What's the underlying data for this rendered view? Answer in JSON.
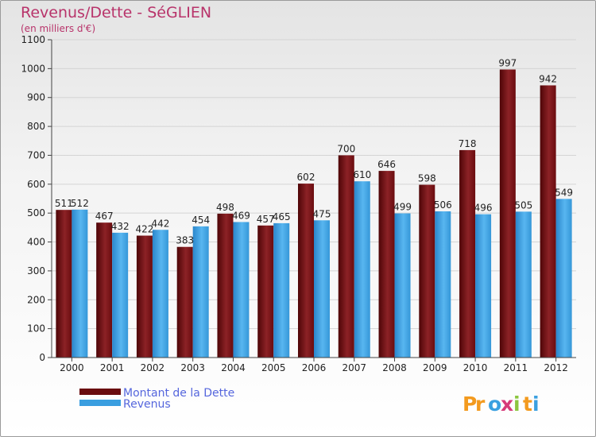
{
  "title": "Revenus/Dette - SéGLIEN",
  "subtitle": "(en milliers d'€)",
  "logo_text": "Proxiti",
  "colors": {
    "dette": "#7a0f12",
    "revenus": "#3a9ee0",
    "title": "#b8336a",
    "legend_text": "#5566dd"
  },
  "chart_data": {
    "type": "bar",
    "categories": [
      "2000",
      "2001",
      "2002",
      "2003",
      "2004",
      "2005",
      "2006",
      "2007",
      "2008",
      "2009",
      "2010",
      "2011",
      "2012"
    ],
    "series": [
      {
        "name": "Montant de la Dette",
        "values": [
          511,
          467,
          422,
          383,
          498,
          457,
          602,
          700,
          646,
          598,
          718,
          997,
          942
        ]
      },
      {
        "name": "Revenus",
        "values": [
          512,
          432,
          442,
          454,
          469,
          465,
          475,
          610,
          499,
          506,
          496,
          505,
          549
        ]
      }
    ],
    "ylim": [
      0,
      1100
    ],
    "yticks": [
      0,
      100,
      200,
      300,
      400,
      500,
      600,
      700,
      800,
      900,
      1000,
      1100
    ],
    "grid": true,
    "legend_position": "bottom-left"
  }
}
